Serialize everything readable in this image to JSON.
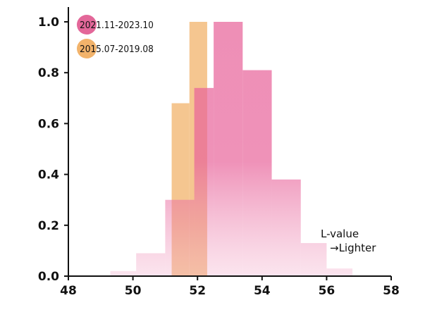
{
  "chart_data": {
    "type": "histogram",
    "title": "",
    "xlabel": "",
    "ylabel": "",
    "xlim": [
      48,
      58
    ],
    "ylim": [
      0,
      1.05
    ],
    "x_ticks": [
      "48",
      "50",
      "52",
      "54",
      "56",
      "58"
    ],
    "y_ticks": [
      "0.0",
      "0.2",
      "0.4",
      "0.6",
      "0.8",
      "1.0"
    ],
    "legend_position": "top-left",
    "grid": false,
    "annotation": {
      "line1": "L-value",
      "line2": "→Lighter"
    },
    "series": [
      {
        "name": "2015.07-2019.08",
        "color": "#f2b36b",
        "bins": [
          {
            "x0": 51.2,
            "x1": 51.75,
            "value": 0.68
          },
          {
            "x0": 51.75,
            "x1": 52.3,
            "value": 1.0
          }
        ]
      },
      {
        "name": "2021.11-2023.10",
        "color": "#e8639a",
        "bins": [
          {
            "x0": 49.3,
            "x1": 50.1,
            "value": 0.02
          },
          {
            "x0": 50.1,
            "x1": 51.0,
            "value": 0.09
          },
          {
            "x0": 51.0,
            "x1": 51.9,
            "value": 0.3
          },
          {
            "x0": 51.9,
            "x1": 52.5,
            "value": 0.74
          },
          {
            "x0": 52.5,
            "x1": 53.4,
            "value": 1.0
          },
          {
            "x0": 53.4,
            "x1": 54.3,
            "value": 0.81
          },
          {
            "x0": 54.3,
            "x1": 55.2,
            "value": 0.38
          },
          {
            "x0": 55.2,
            "x1": 56.0,
            "value": 0.13
          },
          {
            "x0": 56.0,
            "x1": 56.8,
            "value": 0.03
          }
        ]
      }
    ]
  }
}
